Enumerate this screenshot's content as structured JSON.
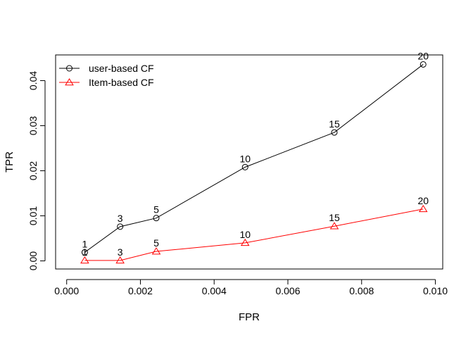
{
  "chart_data": {
    "type": "line",
    "xlabel": "FPR",
    "ylabel": "TPR",
    "xlim": [
      -0.0003,
      0.0102
    ],
    "ylim": [
      -0.0018,
      0.0457
    ],
    "x_ticks": [
      0,
      0.002,
      0.004,
      0.006,
      0.008,
      0.01
    ],
    "x_tick_labels": [
      "0.000",
      "0.002",
      "0.004",
      "0.006",
      "0.008",
      "0.010"
    ],
    "y_ticks": [
      0,
      0.01,
      0.02,
      0.03,
      0.04
    ],
    "y_tick_labels": [
      "0.00",
      "0.01",
      "0.02",
      "0.03",
      "0.04"
    ],
    "legend_position": "top-left",
    "grid": false,
    "series": [
      {
        "name": "user-based CF",
        "color": "#000000",
        "marker": "circle",
        "x": [
          0.00049,
          0.00145,
          0.00243,
          0.00484,
          0.00726,
          0.00967
        ],
        "y": [
          0.0019,
          0.0076,
          0.0095,
          0.0208,
          0.0285,
          0.0436
        ],
        "labels": [
          "1",
          "3",
          "5",
          "10",
          "15",
          "20"
        ]
      },
      {
        "name": "Item-based CF",
        "color": "#ff0000",
        "marker": "triangle",
        "x": [
          0.00049,
          0.00145,
          0.00243,
          0.00484,
          0.00726,
          0.00967
        ],
        "y": [
          0.0001,
          0.0001,
          0.0021,
          0.004,
          0.0077,
          0.0115
        ],
        "labels": [
          "1",
          "3",
          "5",
          "10",
          "15",
          "20"
        ]
      }
    ]
  }
}
